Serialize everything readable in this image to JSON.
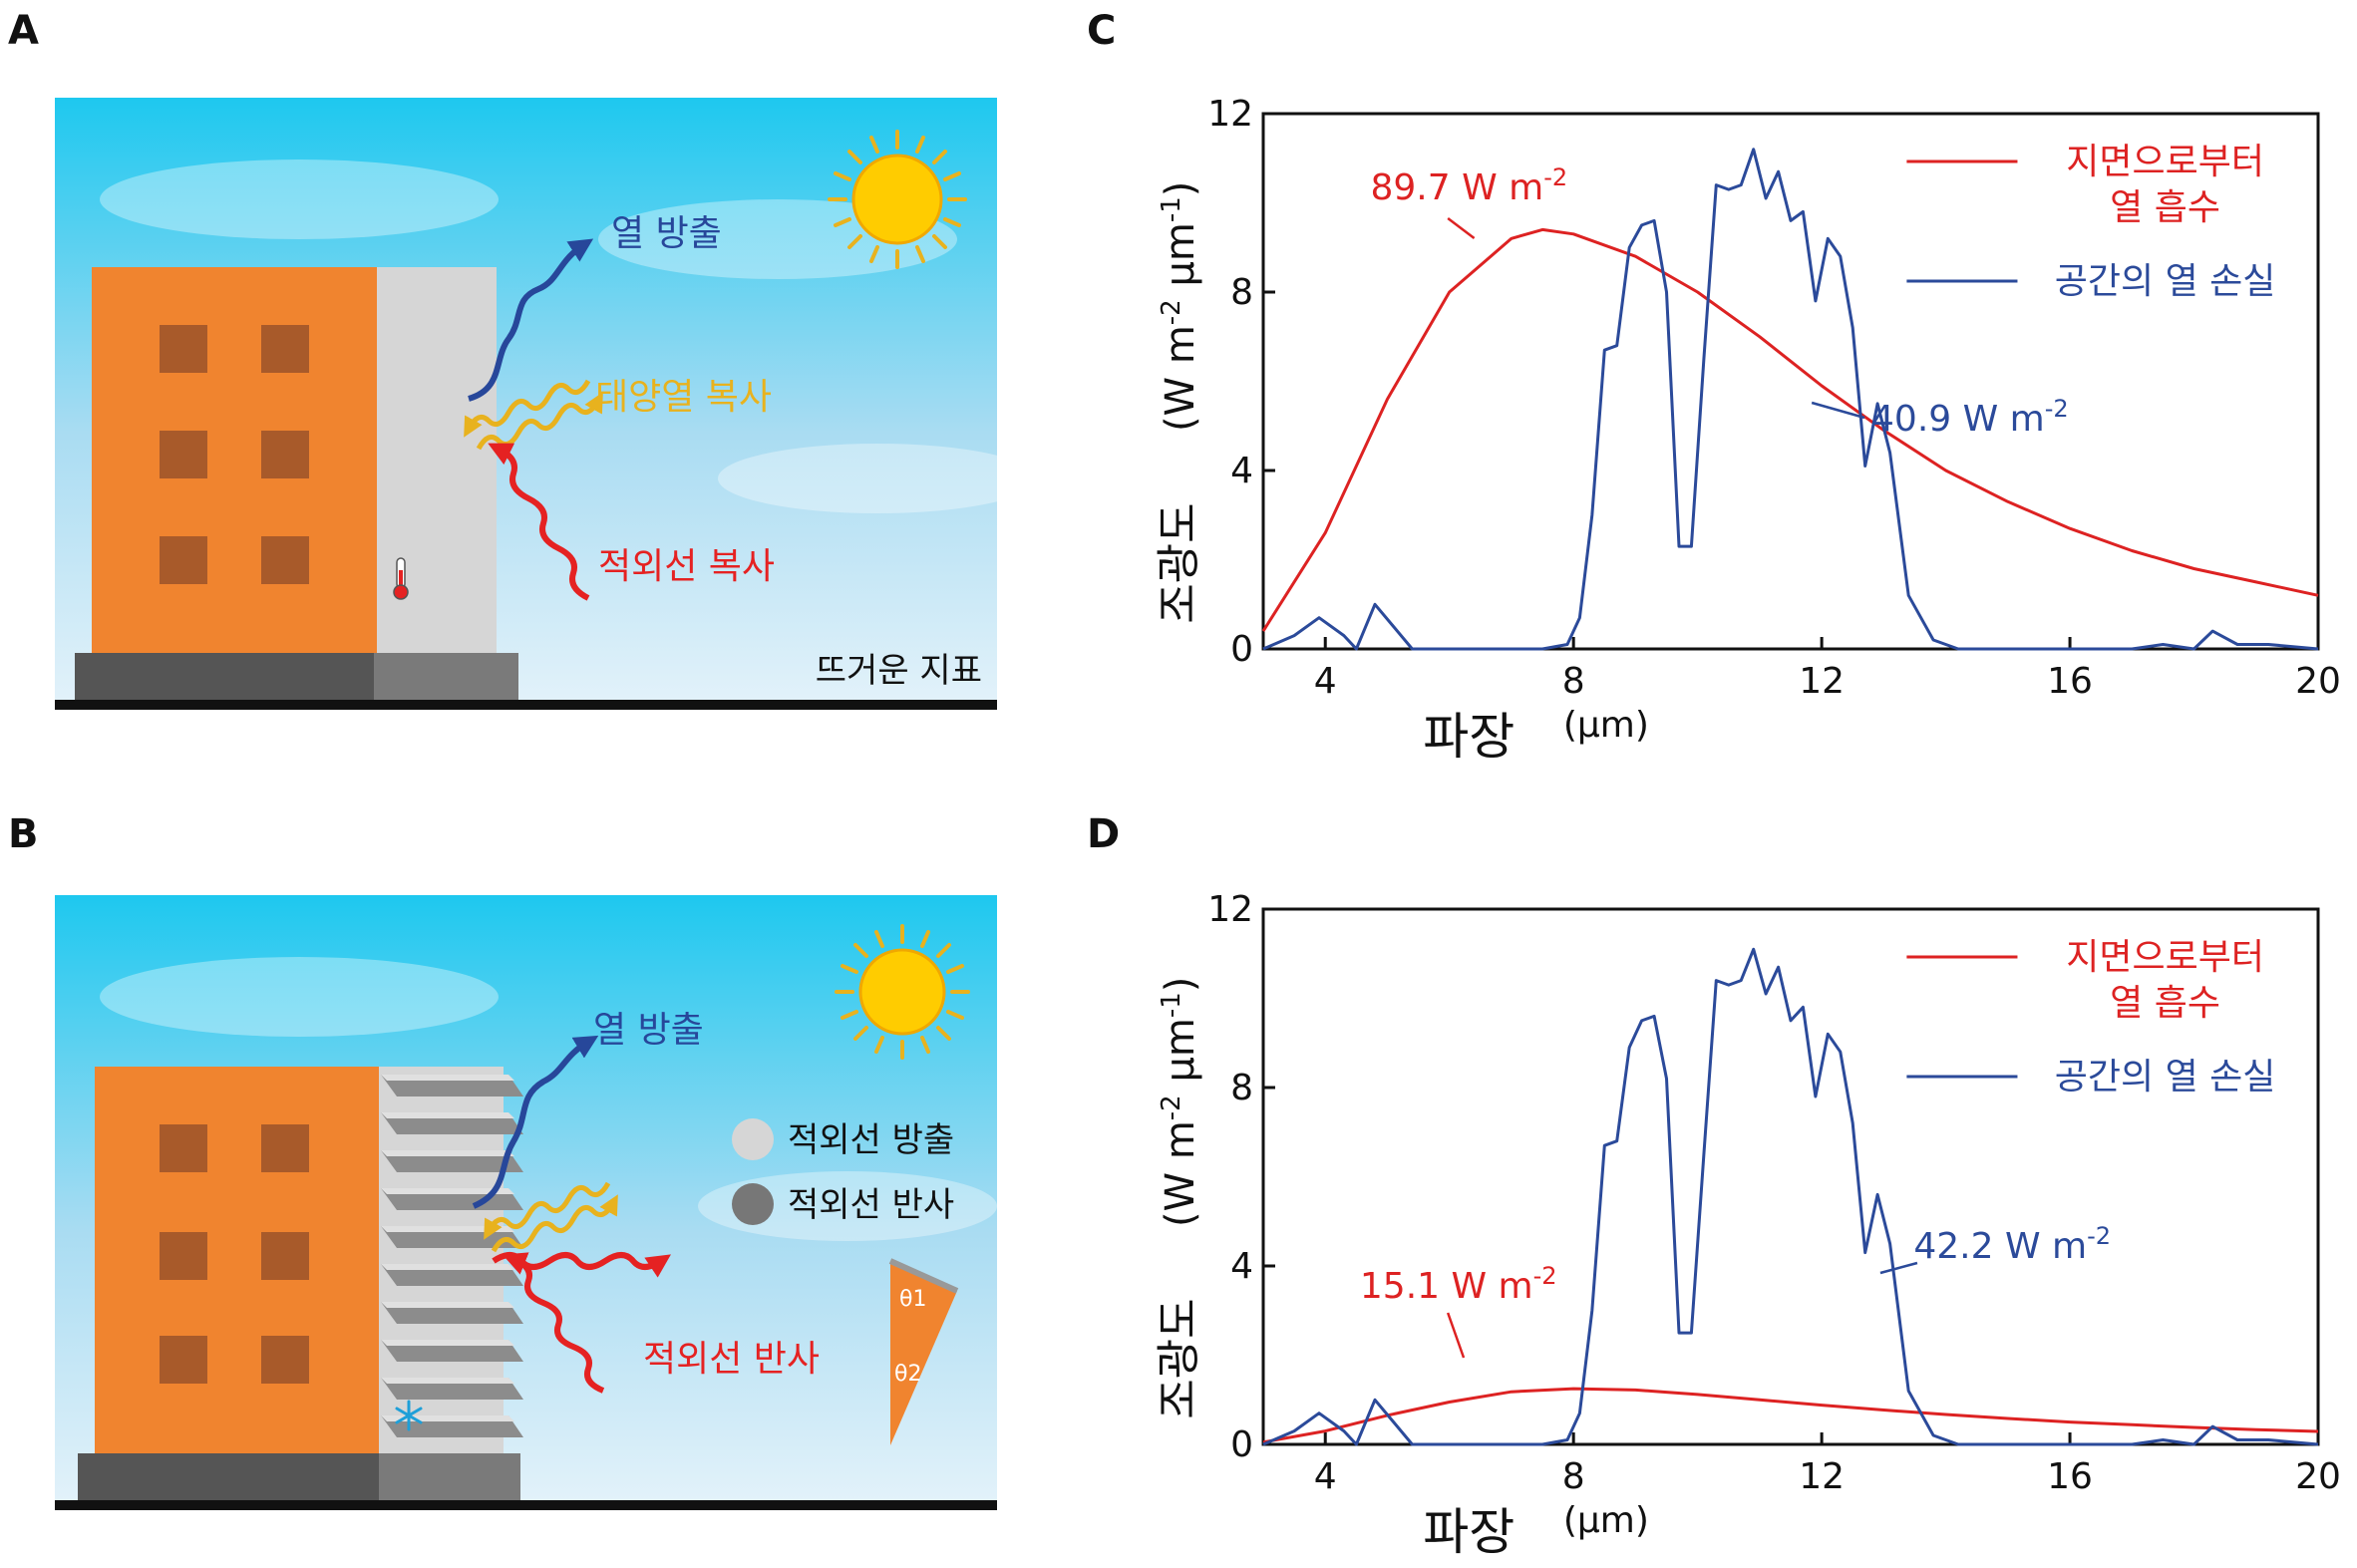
{
  "panels": {
    "A": {
      "letter": "A",
      "labels": {
        "heat_emission": "열 방출",
        "solar": "태양열 복사",
        "infrared": "적외선 복사",
        "ground": "뜨거운 지표"
      }
    },
    "B": {
      "letter": "B",
      "labels": {
        "heat_emission": "열 방출",
        "ir_emit_legend": "적외선 방출",
        "ir_reflect_legend": "적외선 반사",
        "ir_reflect": "적외선 반사",
        "theta1": "θ1",
        "theta2": "θ2"
      }
    },
    "C": {
      "letter": "C"
    },
    "D": {
      "letter": "D"
    }
  },
  "colors": {
    "sky_top": "#1ec8ef",
    "sky_bottom": "#e3f2fa",
    "building": "#f0842f",
    "window": "#a85a2a",
    "panel_gray": "#d6d6d6",
    "base": "#555555",
    "emission_blue": "#27479a",
    "solar_yellow": "#e8b21e",
    "ir_red": "#e52222",
    "sun": "#ffcc00"
  },
  "chart_data": [
    {
      "panel": "C",
      "type": "line",
      "xlabel": "파장",
      "xunit": "(μm)",
      "ylabel": "조광도",
      "yunit": "(W m-2 μm-1)",
      "xlim": [
        3,
        20
      ],
      "ylim": [
        0,
        12
      ],
      "xticks": [
        4,
        8,
        12,
        16,
        20
      ],
      "yticks": [
        0,
        4,
        8,
        12
      ],
      "legend": "top-right",
      "series": [
        {
          "name": "지면으로부터 열 흡수",
          "color": "#dd2222",
          "annotation": "89.7 W m-2",
          "x": [
            3,
            4,
            5,
            6,
            7,
            7.5,
            8,
            9,
            10,
            11,
            12,
            13,
            14,
            15,
            16,
            17,
            18,
            19,
            20
          ],
          "y": [
            0.4,
            2.6,
            5.6,
            8.0,
            9.2,
            9.4,
            9.3,
            8.8,
            8.0,
            7.0,
            5.9,
            4.9,
            4.0,
            3.3,
            2.7,
            2.2,
            1.8,
            1.5,
            1.2
          ]
        },
        {
          "name": "공간의 열 손실",
          "color": "#2b4a9a",
          "annotation": "40.9 W m-2",
          "x": [
            3,
            3.5,
            3.9,
            4.3,
            4.5,
            4.8,
            5.1,
            5.4,
            6,
            7,
            7.5,
            7.9,
            8.1,
            8.3,
            8.5,
            8.7,
            8.9,
            9.1,
            9.3,
            9.5,
            9.7,
            9.9,
            10.1,
            10.3,
            10.5,
            10.7,
            10.9,
            11.1,
            11.3,
            11.5,
            11.7,
            11.9,
            12.1,
            12.3,
            12.5,
            12.7,
            12.9,
            13.1,
            13.4,
            13.8,
            14.2,
            15,
            16,
            17,
            17.5,
            18,
            18.3,
            18.7,
            19.2,
            20
          ],
          "y": [
            0,
            0.3,
            0.7,
            0.3,
            0,
            1.0,
            0.5,
            0,
            0,
            0,
            0,
            0.1,
            0.7,
            3.0,
            6.7,
            6.8,
            9.0,
            9.5,
            9.6,
            8.0,
            2.3,
            2.3,
            6.5,
            10.4,
            10.3,
            10.4,
            11.2,
            10.1,
            10.7,
            9.6,
            9.8,
            7.8,
            9.2,
            8.8,
            7.2,
            4.1,
            5.5,
            4.4,
            1.2,
            0.2,
            0,
            0,
            0,
            0,
            0.1,
            0,
            0.4,
            0.1,
            0.1,
            0
          ]
        }
      ]
    },
    {
      "panel": "D",
      "type": "line",
      "xlabel": "파장",
      "xunit": "(μm)",
      "ylabel": "조광도",
      "yunit": "(W m-2 μm-1)",
      "xlim": [
        3,
        20
      ],
      "ylim": [
        0,
        12
      ],
      "xticks": [
        4,
        8,
        12,
        16,
        20
      ],
      "yticks": [
        0,
        4,
        8,
        12
      ],
      "legend": "top-right",
      "series": [
        {
          "name": "지면으로부터 열 흡수",
          "color": "#dd2222",
          "annotation": "15.1 W m-2",
          "x": [
            3,
            4,
            5,
            6,
            7,
            8,
            9,
            10,
            11,
            12,
            13,
            14,
            15,
            16,
            17,
            18,
            19,
            20
          ],
          "y": [
            0.05,
            0.3,
            0.65,
            0.95,
            1.18,
            1.25,
            1.22,
            1.12,
            1.0,
            0.88,
            0.77,
            0.67,
            0.58,
            0.5,
            0.44,
            0.38,
            0.33,
            0.29
          ]
        },
        {
          "name": "공간의 열 손실",
          "color": "#2b4a9a",
          "annotation": "42.2 W m-2",
          "x": [
            3,
            3.5,
            3.9,
            4.3,
            4.5,
            4.8,
            5.1,
            5.4,
            6,
            7,
            7.5,
            7.9,
            8.1,
            8.3,
            8.5,
            8.7,
            8.9,
            9.1,
            9.3,
            9.5,
            9.7,
            9.9,
            10.1,
            10.3,
            10.5,
            10.7,
            10.9,
            11.1,
            11.3,
            11.5,
            11.7,
            11.9,
            12.1,
            12.3,
            12.5,
            12.7,
            12.9,
            13.1,
            13.4,
            13.8,
            14.2,
            15,
            16,
            17,
            17.5,
            18,
            18.3,
            18.7,
            19.2,
            20
          ],
          "y": [
            0,
            0.3,
            0.7,
            0.3,
            0,
            1.0,
            0.5,
            0,
            0,
            0,
            0,
            0.1,
            0.7,
            3.0,
            6.7,
            6.8,
            8.9,
            9.5,
            9.6,
            8.2,
            2.5,
            2.5,
            6.5,
            10.4,
            10.3,
            10.4,
            11.1,
            10.1,
            10.7,
            9.5,
            9.8,
            7.8,
            9.2,
            8.8,
            7.2,
            4.3,
            5.6,
            4.5,
            1.2,
            0.2,
            0,
            0,
            0,
            0,
            0.1,
            0,
            0.4,
            0.1,
            0.1,
            0
          ]
        }
      ]
    }
  ]
}
